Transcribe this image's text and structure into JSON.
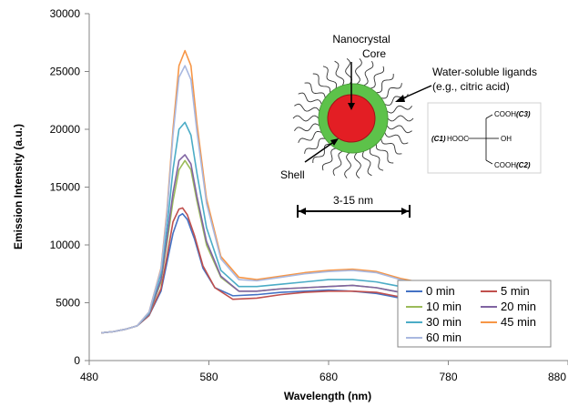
{
  "chart_data": {
    "type": "line",
    "title": "",
    "xlabel": "Wavelength (nm)",
    "ylabel": "Emission Intensity (a.u.)",
    "xlim": [
      480,
      880
    ],
    "ylim": [
      0,
      30000
    ],
    "xticks": [
      480,
      580,
      680,
      780,
      880
    ],
    "yticks": [
      0,
      5000,
      10000,
      15000,
      20000,
      25000,
      30000
    ],
    "grid": false,
    "legend_position": "bottom-right",
    "series": [
      {
        "name": "0 min",
        "color": "#4472c4",
        "x": [
          490,
          500,
          510,
          520,
          530,
          540,
          545,
          550,
          555,
          558,
          562,
          568,
          575,
          585,
          600,
          620,
          640,
          660,
          680,
          700,
          720,
          730,
          740,
          750
        ],
        "y": [
          2400,
          2500,
          2700,
          3000,
          3900,
          6000,
          8500,
          11000,
          12500,
          12700,
          12200,
          10500,
          8000,
          6300,
          5600,
          5700,
          5900,
          6000,
          6100,
          6000,
          5800,
          5600,
          5400,
          5300
        ]
      },
      {
        "name": "5 min",
        "color": "#c0504d",
        "x": [
          490,
          500,
          510,
          520,
          530,
          540,
          545,
          550,
          555,
          558,
          562,
          568,
          575,
          585,
          600,
          620,
          640,
          660,
          680,
          700,
          720,
          730,
          740,
          750
        ],
        "y": [
          2400,
          2500,
          2700,
          3000,
          3900,
          6200,
          9000,
          12000,
          13100,
          13200,
          12600,
          10800,
          8200,
          6300,
          5300,
          5400,
          5700,
          5900,
          6000,
          6000,
          5900,
          5700,
          5500,
          5300
        ]
      },
      {
        "name": "10 min",
        "color": "#9bbb59",
        "x": [
          490,
          500,
          510,
          520,
          530,
          540,
          545,
          550,
          555,
          560,
          565,
          570,
          578,
          590,
          605,
          620,
          640,
          660,
          680,
          700,
          720,
          730,
          740,
          750
        ],
        "y": [
          2400,
          2500,
          2700,
          3000,
          4000,
          6800,
          10200,
          13800,
          16500,
          17300,
          16500,
          13800,
          10000,
          7200,
          6000,
          6000,
          6200,
          6300,
          6400,
          6500,
          6300,
          6100,
          5900,
          5700
        ]
      },
      {
        "name": "20 min",
        "color": "#8064a2",
        "x": [
          490,
          500,
          510,
          520,
          530,
          540,
          545,
          550,
          555,
          560,
          565,
          570,
          578,
          590,
          605,
          620,
          640,
          660,
          680,
          700,
          720,
          730,
          740,
          750
        ],
        "y": [
          2400,
          2500,
          2700,
          3000,
          4000,
          7000,
          10600,
          14500,
          17300,
          17800,
          17000,
          14200,
          10300,
          7300,
          6000,
          6000,
          6200,
          6300,
          6400,
          6500,
          6300,
          6100,
          5900,
          5700
        ]
      },
      {
        "name": "30 min",
        "color": "#4bacc6",
        "x": [
          490,
          500,
          510,
          520,
          530,
          540,
          545,
          550,
          555,
          560,
          565,
          570,
          578,
          590,
          605,
          620,
          640,
          660,
          680,
          700,
          720,
          730,
          740,
          750
        ],
        "y": [
          2400,
          2500,
          2700,
          3000,
          4100,
          7500,
          11500,
          16500,
          20000,
          20600,
          19500,
          16200,
          11500,
          7800,
          6400,
          6400,
          6600,
          6800,
          7000,
          7000,
          6800,
          6600,
          6400,
          6200
        ]
      },
      {
        "name": "45 min",
        "color": "#f79646",
        "x": [
          490,
          500,
          510,
          520,
          530,
          540,
          545,
          550,
          555,
          560,
          565,
          570,
          578,
          590,
          605,
          620,
          640,
          660,
          680,
          700,
          720,
          730,
          740,
          750
        ],
        "y": [
          2400,
          2500,
          2700,
          3000,
          4200,
          8000,
          13000,
          20000,
          25500,
          26800,
          25500,
          20500,
          14000,
          9000,
          7200,
          7000,
          7300,
          7600,
          7800,
          7900,
          7700,
          7400,
          7100,
          6900
        ]
      },
      {
        "name": "60 min",
        "color": "#a9b8e0",
        "x": [
          490,
          500,
          510,
          520,
          530,
          540,
          545,
          550,
          555,
          560,
          565,
          570,
          578,
          590,
          605,
          620,
          640,
          660,
          680,
          700,
          720,
          730,
          740,
          750
        ],
        "y": [
          2400,
          2500,
          2700,
          3000,
          4200,
          7900,
          12700,
          19500,
          24500,
          25500,
          24300,
          19800,
          13600,
          8800,
          7000,
          6900,
          7200,
          7500,
          7700,
          7800,
          7600,
          7300,
          7000,
          6800
        ]
      }
    ]
  },
  "inset": {
    "core_label_line1": "Nanocrystal",
    "core_label_line2": "Core",
    "ligand_label_line1": "Water-soluble ligands",
    "ligand_label_line2": "(e.g., citric acid)",
    "shell_label": "Shell",
    "size_label": "3-15 nm",
    "chem": {
      "c1": "(C1)",
      "hooc": "HOOC",
      "oh": "OH",
      "cooh_top": "COOH",
      "c3": "(C3)",
      "cooh_bottom": "COOH",
      "c2": "(C2)"
    },
    "colors": {
      "core": "#e31e24",
      "shell": "#5dc24a"
    }
  }
}
